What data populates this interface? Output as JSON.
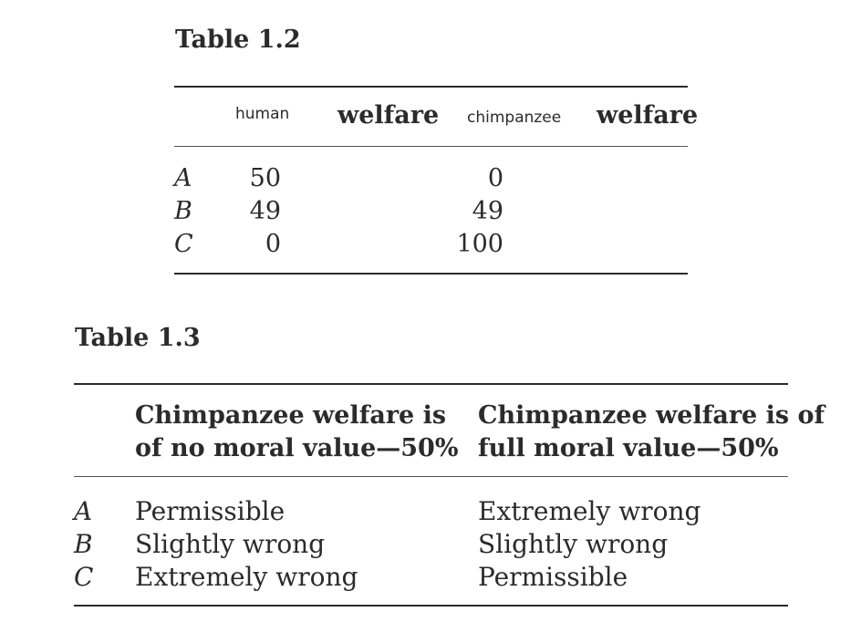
{
  "table_1_2": {
    "caption": "Table 1.2",
    "headers": [
      "human",
      "welfare",
      "chimpanzee",
      "welfare"
    ],
    "rows": [
      {
        "label": "A",
        "human": "50",
        "chimp": "0"
      },
      {
        "label": "B",
        "human": "49",
        "chimp": "49"
      },
      {
        "label": "C",
        "human": "0",
        "chimp": "100"
      }
    ]
  },
  "table_1_3": {
    "caption": "Table 1.3",
    "col1_header": [
      "Chimpanzee welfare is",
      "of no moral value—50%"
    ],
    "col2_header": [
      "Chimpanzee welfare is of",
      "full moral value—50%"
    ],
    "rows": [
      {
        "label": "A",
        "col1": "Permissible",
        "col2": "Extremely wrong"
      },
      {
        "label": "B",
        "col1": "Slightly wrong",
        "col2": "Slightly wrong"
      },
      {
        "label": "C",
        "col1": "Extremely wrong",
        "col2": "Permissible"
      }
    ]
  }
}
